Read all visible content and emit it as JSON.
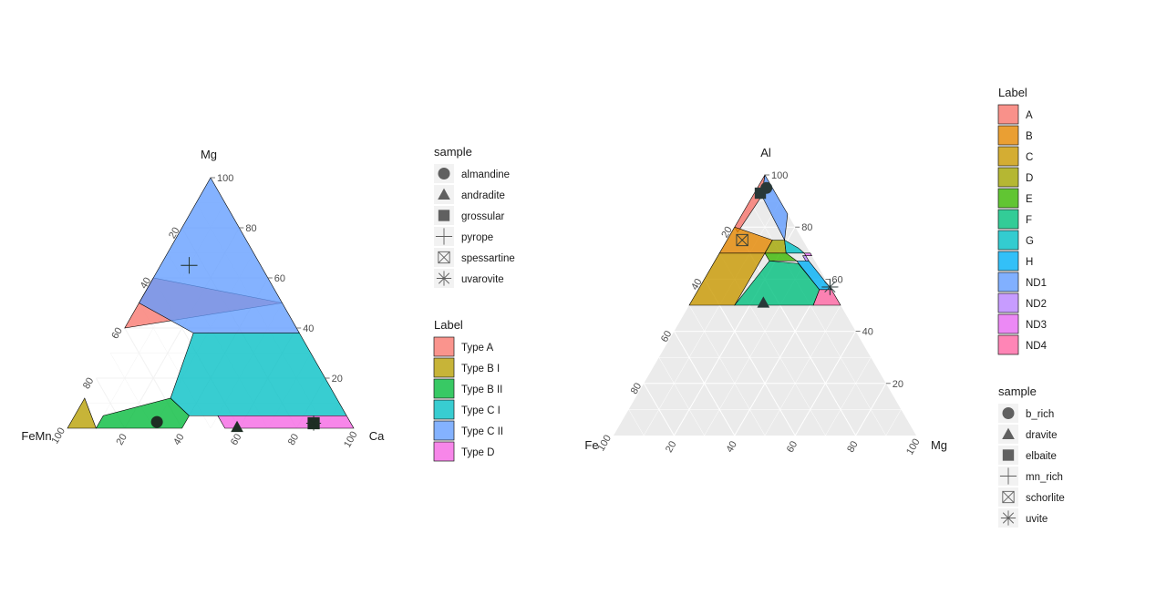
{
  "chart_data": [
    {
      "type": "ternary",
      "axes": {
        "top": "Mg",
        "left": "FeMn",
        "right": "Ca"
      },
      "ticks": [
        "20",
        "40",
        "60",
        "80",
        "100"
      ],
      "regions": [
        {
          "label": "Type  A",
          "color": "#F8766D",
          "vertices": [
            [
              50,
              0,
              50
            ],
            [
              60,
              40,
              0
            ],
            [
              40,
              60,
              0
            ]
          ]
        },
        {
          "label": "Type B I",
          "color": "#B79F00",
          "vertices": [
            [
              12,
              88,
              0
            ],
            [
              5,
              95,
              0
            ],
            [
              0,
              100,
              0
            ],
            [
              0,
              90,
              10
            ]
          ]
        },
        {
          "label": "Type B II",
          "color": "#00BA38",
          "vertices": [
            [
              0,
              90,
              10
            ],
            [
              0,
              60,
              40
            ],
            [
              5,
              55,
              40
            ],
            [
              12,
              58,
              30
            ],
            [
              5,
              85,
              10
            ]
          ]
        },
        {
          "label": "Type C I",
          "color": "#00BFC4",
          "vertices": [
            [
              12,
              58,
              30
            ],
            [
              38,
              37,
              25
            ],
            [
              38,
              0,
              62
            ],
            [
              5,
              0,
              95
            ],
            [
              5,
              55,
              40
            ]
          ]
        },
        {
          "label": "Type C II",
          "color": "#619CFF",
          "vertices": [
            [
              100,
              0,
              0
            ],
            [
              38,
              0,
              62
            ],
            [
              38,
              37,
              25
            ],
            [
              50,
              50,
              0
            ]
          ]
        },
        {
          "label": "Type D",
          "color": "#F564E3",
          "vertices": [
            [
              5,
              45,
              50
            ],
            [
              0,
              45,
              55
            ],
            [
              0,
              0,
              100
            ],
            [
              5,
              0,
              95
            ]
          ]
        }
      ],
      "samples": [
        {
          "name": "almandine",
          "shape": "circle",
          "value": [
            2.5,
            67.5,
            30
          ]
        },
        {
          "name": "andradite",
          "shape": "triangle",
          "value": [
            0.5,
            40.5,
            59
          ]
        },
        {
          "name": "grossular",
          "shape": "square",
          "value": [
            2,
            13,
            85
          ]
        },
        {
          "name": "pyrope",
          "shape": "plus",
          "value": [
            65,
            25,
            10
          ]
        },
        {
          "name": "spessartine",
          "shape": "boxed-x",
          "value": [
            2,
            13,
            85
          ]
        },
        {
          "name": "uvarovite",
          "shape": "asterisk",
          "value": [
            2,
            13,
            85
          ]
        }
      ],
      "legends": [
        {
          "title": "sample",
          "items": [
            "almandine",
            "andradite",
            "grossular",
            "pyrope",
            "spessartine",
            "uvarovite"
          ]
        },
        {
          "title": "Label",
          "items": [
            "Type  A",
            "Type B I",
            "Type B II",
            "Type C I",
            "Type C II",
            "Type D"
          ]
        }
      ]
    },
    {
      "type": "ternary",
      "axes": {
        "top": "Al",
        "left": "Fe",
        "right": "Mg"
      },
      "ticks": [
        "20",
        "40",
        "60",
        "80",
        "100"
      ],
      "regions": [
        {
          "label": "A",
          "color": "#F8766D",
          "vertices": [
            [
              100,
              0,
              0
            ],
            [
              80,
              20,
              0
            ],
            [
              78,
              20,
              2
            ],
            [
              92,
              5,
              3
            ]
          ]
        },
        {
          "label": "B",
          "color": "#E58700",
          "vertices": [
            [
              80,
              20,
              0
            ],
            [
              70,
              30,
              0
            ],
            [
              70,
              15,
              15
            ],
            [
              75,
              10,
              15
            ]
          ]
        },
        {
          "label": "C",
          "color": "#C99800",
          "vertices": [
            [
              70,
              30,
              0
            ],
            [
              50,
              50,
              0
            ],
            [
              50,
              35,
              15
            ],
            [
              70,
              15,
              15
            ]
          ]
        },
        {
          "label": "D",
          "color": "#A3A500",
          "vertices": [
            [
              75,
              10,
              15
            ],
            [
              70,
              15,
              15
            ],
            [
              70,
              8,
              22
            ],
            [
              75,
              6,
              19
            ]
          ]
        },
        {
          "label": "E",
          "color": "#39B600",
          "vertices": [
            [
              70,
              15,
              15
            ],
            [
              67,
              15,
              18
            ],
            [
              67,
              6,
              27
            ],
            [
              70,
              8,
              22
            ]
          ]
        },
        {
          "label": "F",
          "color": "#00BF7D",
          "vertices": [
            [
              67,
              15,
              18
            ],
            [
              50,
              35,
              15
            ],
            [
              50,
              9,
              41
            ],
            [
              56,
              4,
              40
            ],
            [
              66,
              6,
              28
            ]
          ]
        },
        {
          "label": "G",
          "color": "#00BFC4",
          "vertices": [
            [
              75,
              6,
              19
            ],
            [
              70,
              8,
              22
            ],
            [
              70,
              2,
              28
            ],
            [
              72,
              3,
              25
            ]
          ]
        },
        {
          "label": "H",
          "color": "#00B0F6",
          "vertices": [
            [
              67,
              6,
              27
            ],
            [
              56,
              4,
              40
            ],
            [
              56,
              0,
              44
            ],
            [
              67,
              2,
              31
            ]
          ]
        },
        {
          "label": "ND1",
          "color": "#619CFF",
          "vertices": [
            [
              100,
              0,
              0
            ],
            [
              92,
              5,
              3
            ],
            [
              75,
              6,
              19
            ],
            [
              85,
              0,
              15
            ]
          ]
        },
        {
          "label": "ND2",
          "color": "#B983FF",
          "vertices": [
            [
              69,
              3,
              28
            ],
            [
              67,
              3,
              30
            ],
            [
              67,
              2,
              31
            ],
            [
              69,
              2,
              29
            ]
          ]
        },
        {
          "label": "ND3",
          "color": "#E76BF3",
          "vertices": [
            [
              70,
              2,
              28
            ],
            [
              69,
              2,
              29
            ],
            [
              69,
              0,
              31
            ],
            [
              70,
              0,
              30
            ]
          ]
        },
        {
          "label": "ND4",
          "color": "#FF67A4",
          "vertices": [
            [
              56,
              4,
              40
            ],
            [
              50,
              9,
              41
            ],
            [
              50,
              0,
              50
            ],
            [
              56,
              0,
              44
            ]
          ]
        }
      ],
      "samples": [
        {
          "name": "b_rich",
          "shape": "circle",
          "value": [
            95,
            2,
            3
          ]
        },
        {
          "name": "dravite",
          "shape": "triangle",
          "value": [
            51,
            25,
            24
          ]
        },
        {
          "name": "elbaite",
          "shape": "square",
          "value": [
            93,
            5,
            2
          ]
        },
        {
          "name": "mn_rich",
          "shape": "plus",
          "value": [
            57,
            0,
            43
          ]
        },
        {
          "name": "schorlite",
          "shape": "boxed-x",
          "value": [
            75,
            20,
            5
          ]
        },
        {
          "name": "uvite",
          "shape": "asterisk",
          "value": [
            57,
            0,
            43
          ]
        }
      ],
      "legends": [
        {
          "title": "Label",
          "items": [
            "A",
            "B",
            "C",
            "D",
            "E",
            "F",
            "G",
            "H",
            "ND1",
            "ND2",
            "ND3",
            "ND4"
          ]
        },
        {
          "title": "sample",
          "items": [
            "b_rich",
            "dravite",
            "elbaite",
            "mn_rich",
            "schorlite",
            "uvite"
          ]
        }
      ]
    }
  ]
}
